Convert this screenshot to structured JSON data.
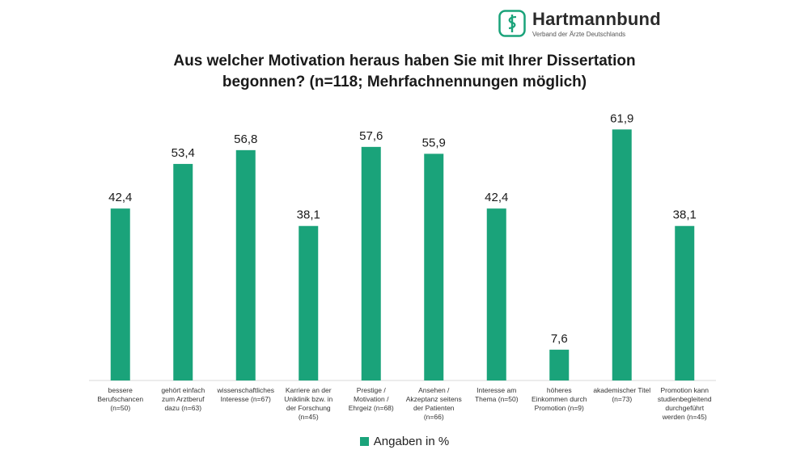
{
  "logo": {
    "name": "Hartmannbund",
    "tagline": "Verband der Ärzte Deutschlands",
    "color": "#1aa37a"
  },
  "title_line1": "Aus welcher Motivation heraus haben Sie mit Ihrer Dissertation",
  "title_line2": "begonnen? (n=118; Mehrfachnennungen möglich)",
  "chart_data": {
    "type": "bar",
    "title": "Aus welcher Motivation heraus haben Sie mit Ihrer Dissertation begonnen? (n=118; Mehrfachnennungen möglich)",
    "xlabel": "",
    "ylabel": "",
    "ylim": [
      0,
      65
    ],
    "grid": false,
    "legend_position": "bottom",
    "bar_color": "#1aa37a",
    "categories": [
      [
        "bessere",
        "Berufschancen",
        "(n=50)"
      ],
      [
        "gehört einfach",
        "zum Arztberuf",
        "dazu (n=63)"
      ],
      [
        "wissenschaftliches",
        "Interesse (n=67)"
      ],
      [
        "Karriere an der",
        "Uniklinik bzw. in",
        "der Forschung",
        "(n=45)"
      ],
      [
        "Prestige /",
        "Motivation /",
        "Ehrgeiz (n=68)"
      ],
      [
        "Ansehen /",
        "Akzeptanz seitens",
        "der Patienten",
        "(n=66)"
      ],
      [
        "Interesse am",
        "Thema (n=50)"
      ],
      [
        "höheres",
        "Einkommen durch",
        "Promotion (n=9)"
      ],
      [
        "akademischer Titel",
        "(n=73)"
      ],
      [
        "Promotion kann",
        "studienbegleitend",
        "durchgeführt",
        "werden (n=45)"
      ]
    ],
    "value_labels": [
      "42,4",
      "53,4",
      "56,8",
      "38,1",
      "57,6",
      "55,9",
      "42,4",
      "7,6",
      "61,9",
      "38,1"
    ],
    "series": [
      {
        "name": "Angaben in %",
        "values": [
          42.4,
          53.4,
          56.8,
          38.1,
          57.6,
          55.9,
          42.4,
          7.6,
          61.9,
          38.1
        ]
      }
    ]
  }
}
